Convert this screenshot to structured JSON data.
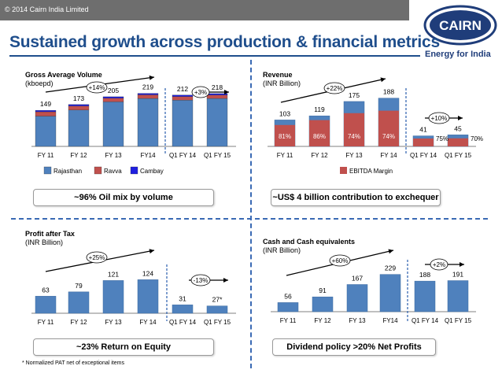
{
  "header": {
    "copyright": "© 2014 Cairn India Limited",
    "title": "Sustained growth across production & financial metrics",
    "logo_text": "CAIRN",
    "tagline": "Energy for India"
  },
  "colors": {
    "rajasthan": "#4f81bd",
    "ravva": "#c0504d",
    "cambay": "#1f1fe0",
    "ebitda": "#c0504d",
    "revenue": "#4f81bd",
    "bar": "#4f81bd",
    "accent": "#1f4e8c"
  },
  "footnote": "* Normalized PAT net of exceptional items",
  "chart_data": [
    {
      "id": "production",
      "type": "bar",
      "title": "Gross Average Volume",
      "subtitle": "(kboepd)",
      "categories": [
        "FY 11",
        "FY 12",
        "FY 13",
        "FY14",
        "Q1 FY 14",
        "Q1 FY 15"
      ],
      "totals": [
        "149",
        "173",
        "205",
        "219",
        "212",
        "218"
      ],
      "series": [
        {
          "name": "Rajasthan",
          "values": [
            125,
            150,
            184,
            198,
            191,
            198
          ]
        },
        {
          "name": "Ravva",
          "values": [
            18,
            17,
            15,
            15,
            15,
            14
          ]
        },
        {
          "name": "Cambay",
          "values": [
            6,
            6,
            6,
            6,
            6,
            6
          ]
        }
      ],
      "ylim": [
        0,
        260
      ],
      "growth_labels": [
        "+14%",
        "+3%"
      ],
      "callout": "~96% Oil mix by volume"
    },
    {
      "id": "revenue",
      "type": "bar",
      "title": "Revenue",
      "subtitle": "(INR Billion)",
      "categories": [
        "FY 11",
        "FY 12",
        "FY 13",
        "FY 14",
        "Q1 FY 14",
        "Q1 FY 15"
      ],
      "totals": [
        "103",
        "119",
        "175",
        "188",
        "41",
        "45"
      ],
      "values": [
        103,
        119,
        175,
        188,
        41,
        45
      ],
      "ebitda_margin": [
        81,
        86,
        74,
        74,
        75,
        70
      ],
      "margin_labels": [
        "81%",
        "86%",
        "74%",
        "74%",
        "75%",
        "70%"
      ],
      "legend": [
        "EBITDA Margin"
      ],
      "ylim": [
        0,
        230
      ],
      "growth_labels": [
        "+22%",
        "+10%"
      ],
      "callout": "~US$ 4 billion contribution to exchequer"
    },
    {
      "id": "pat",
      "type": "bar",
      "title": "Profit after Tax",
      "subtitle": "(INR Billion)",
      "categories": [
        "FY 11",
        "FY 12",
        "FY 13",
        "FY 14",
        "Q1 FY 14",
        "Q1 FY 15"
      ],
      "totals": [
        "63",
        "79",
        "121",
        "124",
        "31",
        "27*"
      ],
      "values": [
        63,
        79,
        121,
        124,
        31,
        27
      ],
      "ylim": [
        0,
        160
      ],
      "growth_labels": [
        "+25%",
        "-13%"
      ],
      "callout": "~23% Return on Equity"
    },
    {
      "id": "cash",
      "type": "bar",
      "title": "Cash  and Cash equivalents",
      "subtitle": "(INR Billion)",
      "categories": [
        "FY 11",
        "FY 12",
        "FY 13",
        "FY14",
        "Q1 FY 14",
        "Q1 FY 15"
      ],
      "totals": [
        "56",
        "91",
        "167",
        "229",
        "188",
        "191"
      ],
      "values": [
        56,
        91,
        167,
        229,
        188,
        191
      ],
      "ylim": [
        0,
        300
      ],
      "growth_labels": [
        "+60%",
        "+2%"
      ],
      "callout": "Dividend policy >20% Net Profits"
    }
  ]
}
